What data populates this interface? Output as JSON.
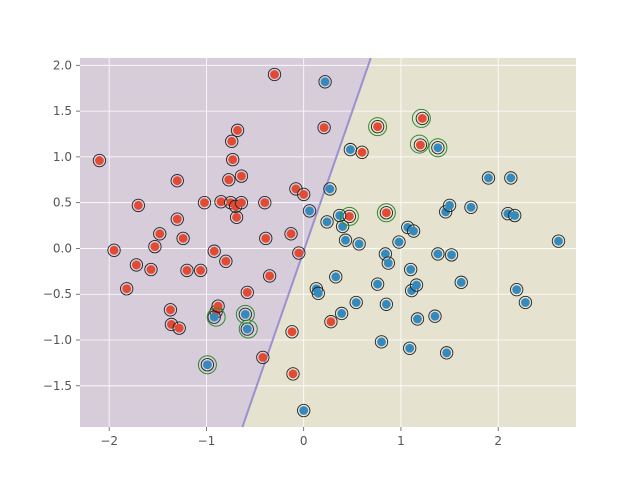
{
  "chart_data": {
    "type": "scatter",
    "title": "",
    "xlabel": "",
    "ylabel": "",
    "xlim": [
      -2.3,
      2.8
    ],
    "ylim": [
      -1.95,
      2.08
    ],
    "xticks": [
      -2,
      -1,
      0,
      1,
      2
    ],
    "yticks": [
      -1.5,
      -1.0,
      -0.5,
      0.0,
      0.5,
      1.0,
      1.5,
      2.0
    ],
    "grid": true,
    "legend": "none",
    "decision_boundary": {
      "x_at_ymin": -0.63,
      "x_at_ymax": 0.69
    },
    "colors": {
      "region_a": "#d6ccda",
      "region_b": "#e5e2d0",
      "boundary": "#9b90d2",
      "class_0": "#e24a33",
      "class_1": "#348abd",
      "marker_edge": "#222222",
      "support_vector_ring": "#2e8b2e",
      "grid": "#ffffff",
      "axes_bg": "#e5e5e5",
      "tick_text": "#555555"
    },
    "series": [
      {
        "class": 0,
        "points": [
          [
            -2.1,
            0.96
          ],
          [
            -1.95,
            -0.02
          ],
          [
            -1.82,
            -0.44
          ],
          [
            -1.72,
            -0.18
          ],
          [
            -1.7,
            0.47
          ],
          [
            -1.57,
            -0.23
          ],
          [
            -1.53,
            0.02
          ],
          [
            -1.48,
            0.16
          ],
          [
            -1.37,
            -0.67
          ],
          [
            -1.36,
            -0.83
          ],
          [
            -1.3,
            0.74
          ],
          [
            -1.3,
            0.32
          ],
          [
            -1.28,
            -0.87
          ],
          [
            -1.24,
            0.11
          ],
          [
            -1.2,
            -0.24
          ],
          [
            -1.06,
            -0.24
          ],
          [
            -1.02,
            0.5
          ],
          [
            -0.92,
            -0.03
          ],
          [
            -0.9,
            -0.69
          ],
          [
            -0.88,
            -0.63
          ],
          [
            -0.85,
            0.51
          ],
          [
            -0.8,
            -0.14
          ],
          [
            -0.77,
            0.75
          ],
          [
            -0.75,
            0.5
          ],
          [
            -0.74,
            1.17
          ],
          [
            -0.73,
            0.97
          ],
          [
            -0.7,
            0.46
          ],
          [
            -0.69,
            0.34
          ],
          [
            -0.68,
            1.29
          ],
          [
            -0.64,
            0.79
          ],
          [
            -0.64,
            0.5
          ],
          [
            -0.58,
            -0.48
          ],
          [
            -0.42,
            -1.19
          ],
          [
            -0.4,
            0.5
          ],
          [
            -0.39,
            0.11
          ],
          [
            -0.35,
            -0.3
          ],
          [
            -0.3,
            1.9
          ],
          [
            -0.13,
            0.16
          ],
          [
            -0.12,
            -0.91
          ],
          [
            -0.11,
            -1.37
          ],
          [
            -0.08,
            0.65
          ],
          [
            -0.05,
            -0.05
          ],
          [
            0.0,
            0.59
          ],
          [
            0.21,
            1.32
          ],
          [
            0.28,
            -0.8
          ],
          [
            0.47,
            0.35
          ],
          [
            0.6,
            1.05
          ],
          [
            0.76,
            1.33
          ],
          [
            0.85,
            0.39
          ],
          [
            1.22,
            1.42
          ],
          [
            1.2,
            1.13
          ]
        ]
      },
      {
        "class": 1,
        "points": [
          [
            -0.99,
            -1.27
          ],
          [
            -0.92,
            -0.75
          ],
          [
            -0.6,
            -0.72
          ],
          [
            -0.58,
            -0.88
          ],
          [
            0.0,
            -1.77
          ],
          [
            0.06,
            0.41
          ],
          [
            0.13,
            -0.44
          ],
          [
            0.15,
            -0.49
          ],
          [
            0.22,
            1.82
          ],
          [
            0.24,
            0.29
          ],
          [
            0.27,
            0.65
          ],
          [
            0.33,
            -0.31
          ],
          [
            0.37,
            0.36
          ],
          [
            0.39,
            -0.71
          ],
          [
            0.4,
            0.24
          ],
          [
            0.43,
            0.09
          ],
          [
            0.48,
            1.08
          ],
          [
            0.54,
            -0.59
          ],
          [
            0.57,
            0.05
          ],
          [
            0.76,
            -0.39
          ],
          [
            0.8,
            -1.02
          ],
          [
            0.84,
            -0.06
          ],
          [
            0.85,
            -0.61
          ],
          [
            0.87,
            -0.16
          ],
          [
            0.98,
            0.07
          ],
          [
            1.07,
            0.23
          ],
          [
            1.09,
            -1.09
          ],
          [
            1.1,
            -0.23
          ],
          [
            1.11,
            -0.46
          ],
          [
            1.13,
            0.19
          ],
          [
            1.16,
            -0.4
          ],
          [
            1.17,
            -0.77
          ],
          [
            1.35,
            -0.74
          ],
          [
            1.38,
            -0.06
          ],
          [
            1.46,
            0.4
          ],
          [
            1.47,
            -1.14
          ],
          [
            1.5,
            0.47
          ],
          [
            1.52,
            -0.07
          ],
          [
            1.62,
            -0.37
          ],
          [
            1.72,
            0.45
          ],
          [
            1.9,
            0.77
          ],
          [
            2.1,
            0.38
          ],
          [
            2.13,
            0.77
          ],
          [
            2.17,
            0.36
          ],
          [
            2.19,
            -0.45
          ],
          [
            2.28,
            -0.59
          ],
          [
            2.62,
            0.08
          ],
          [
            1.38,
            1.1
          ]
        ]
      }
    ],
    "support_vectors": [
      [
        -0.99,
        -1.27
      ],
      [
        -0.9,
        -0.75
      ],
      [
        -0.6,
        -0.72
      ],
      [
        -0.57,
        -0.88
      ],
      [
        0.47,
        0.35
      ],
      [
        0.76,
        1.33
      ],
      [
        0.85,
        0.39
      ],
      [
        1.21,
        1.42
      ],
      [
        1.19,
        1.14
      ],
      [
        1.38,
        1.1
      ]
    ]
  }
}
